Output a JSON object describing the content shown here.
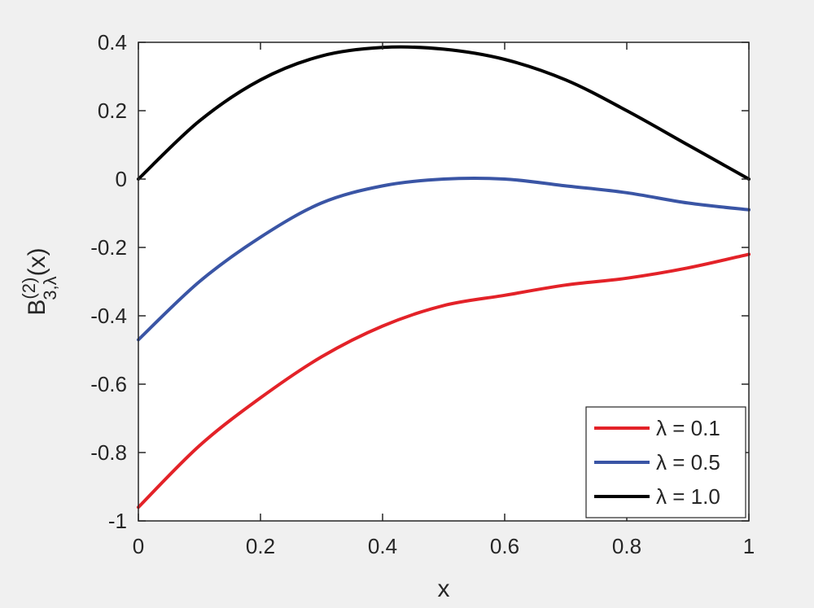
{
  "chart_data": {
    "type": "line",
    "xlabel": "x",
    "ylabel": {
      "main": "B",
      "superscript": "(2)",
      "subscript": "3,λ",
      "suffix": "(x)"
    },
    "xlim": [
      0,
      1
    ],
    "ylim": [
      -1,
      0.4
    ],
    "xticks": [
      0,
      0.2,
      0.4,
      0.6,
      0.8,
      1
    ],
    "xtick_labels": [
      "0",
      "0.2",
      "0.4",
      "0.6",
      "0.8",
      "1"
    ],
    "yticks": [
      -1,
      -0.8,
      -0.6,
      -0.4,
      -0.2,
      0,
      0.2,
      0.4
    ],
    "ytick_labels": [
      "-1",
      "-0.8",
      "-0.6",
      "-0.4",
      "-0.2",
      "0",
      "0.2",
      "0.4"
    ],
    "grid": false,
    "legend_position": "bottom-right",
    "x": [
      0,
      0.1,
      0.2,
      0.3,
      0.4,
      0.5,
      0.6,
      0.7,
      0.8,
      0.9,
      1.0
    ],
    "series": [
      {
        "name": "λ = 0.1",
        "color": "#e32228",
        "values": [
          -0.96,
          -0.78,
          -0.64,
          -0.52,
          -0.43,
          -0.37,
          -0.34,
          -0.31,
          -0.29,
          -0.26,
          -0.22
        ]
      },
      {
        "name": "λ = 0.5",
        "color": "#3a55a5",
        "values": [
          -0.47,
          -0.3,
          -0.17,
          -0.07,
          -0.02,
          0.0,
          0.0,
          -0.02,
          -0.04,
          -0.07,
          -0.09
        ]
      },
      {
        "name": "λ = 1.0",
        "color": "#000000",
        "values": [
          0.0,
          0.17,
          0.29,
          0.36,
          0.385,
          0.38,
          0.35,
          0.29,
          0.2,
          0.1,
          0.0
        ]
      }
    ]
  }
}
